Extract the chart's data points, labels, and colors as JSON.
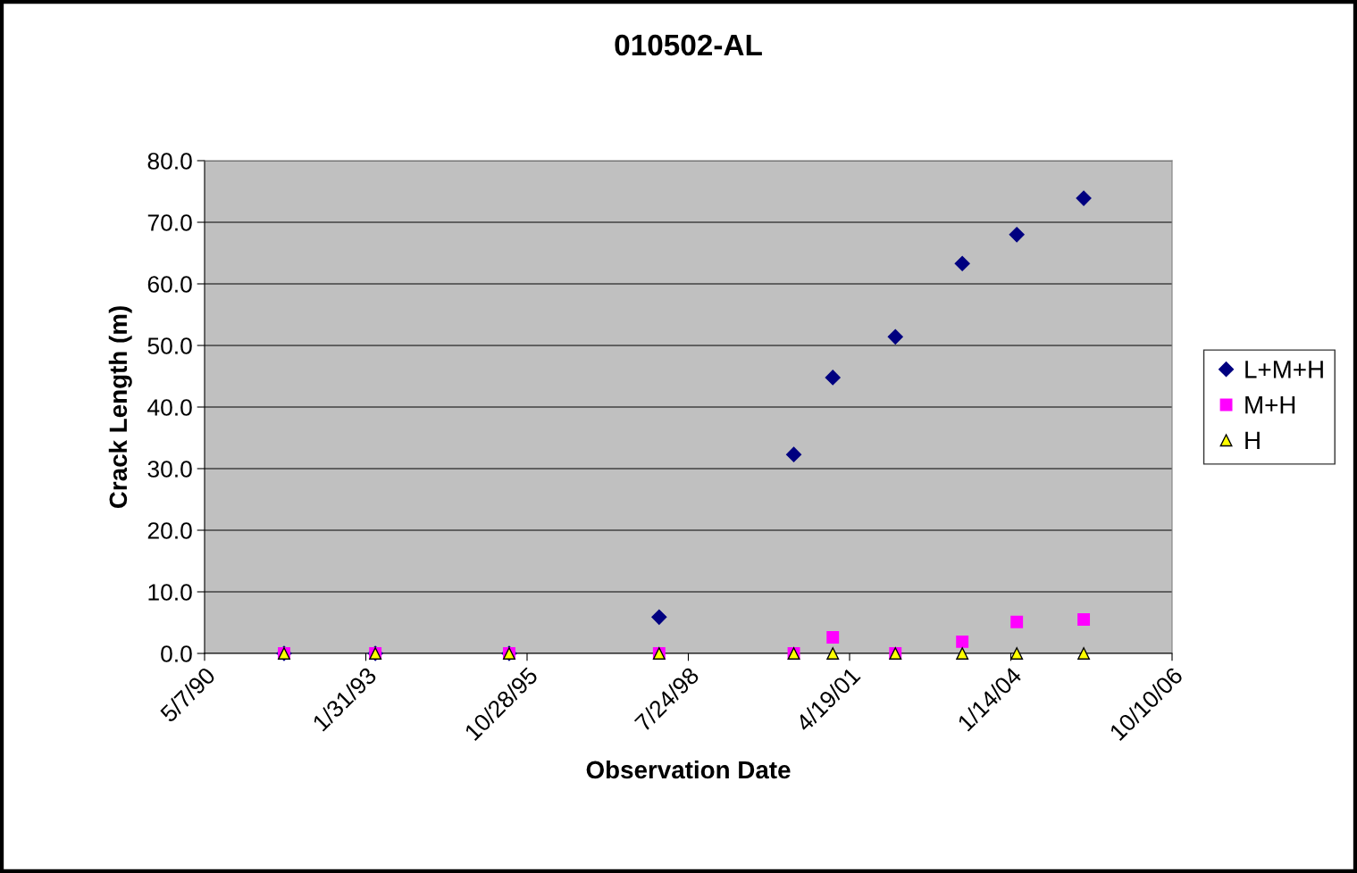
{
  "chart_data": {
    "type": "scatter",
    "title": "010502-AL",
    "xlabel": "Observation Date",
    "ylabel": "Crack Length (m)",
    "x": [
      "1991-09-12",
      "1993-03-31",
      "1995-07-09",
      "1998-01-24",
      "2000-05-08",
      "2001-01-05",
      "2002-01-28",
      "2003-03-19",
      "2004-02-20",
      "2005-04-10"
    ],
    "series": [
      {
        "name": "L+M+H",
        "color": "#000080",
        "marker": "diamond",
        "values": [
          0,
          0,
          0,
          5.9,
          32.3,
          44.8,
          51.4,
          63.3,
          68.0,
          73.9
        ]
      },
      {
        "name": "M+H",
        "color": "#ff00ff",
        "marker": "square",
        "values": [
          0,
          0,
          0,
          0,
          0,
          2.6,
          0,
          1.9,
          5.1,
          5.5
        ]
      },
      {
        "name": "H",
        "color": "#ffff00",
        "marker": "triangle",
        "values": [
          0,
          0,
          0,
          0,
          0,
          0,
          0,
          0,
          0,
          0
        ]
      }
    ],
    "xlim": [
      "1990-05-07",
      "2006-10-10"
    ],
    "xticks": [
      {
        "value": "1990-05-07",
        "label": "5/7/90"
      },
      {
        "value": "1993-01-31",
        "label": "1/31/93"
      },
      {
        "value": "1995-10-28",
        "label": "10/28/95"
      },
      {
        "value": "1998-07-24",
        "label": "7/24/98"
      },
      {
        "value": "2001-04-19",
        "label": "4/19/01"
      },
      {
        "value": "2004-01-14",
        "label": "1/14/04"
      },
      {
        "value": "2006-10-10",
        "label": "10/10/06"
      }
    ],
    "ylim": [
      0,
      80
    ],
    "yticks": [
      {
        "value": 0,
        "label": "0.0"
      },
      {
        "value": 10,
        "label": "10.0"
      },
      {
        "value": 20,
        "label": "20.0"
      },
      {
        "value": 30,
        "label": "30.0"
      },
      {
        "value": 40,
        "label": "40.0"
      },
      {
        "value": 50,
        "label": "50.0"
      },
      {
        "value": 60,
        "label": "60.0"
      },
      {
        "value": 70,
        "label": "70.0"
      },
      {
        "value": 80,
        "label": "80.0"
      }
    ],
    "grid": "y",
    "legend": "right"
  }
}
